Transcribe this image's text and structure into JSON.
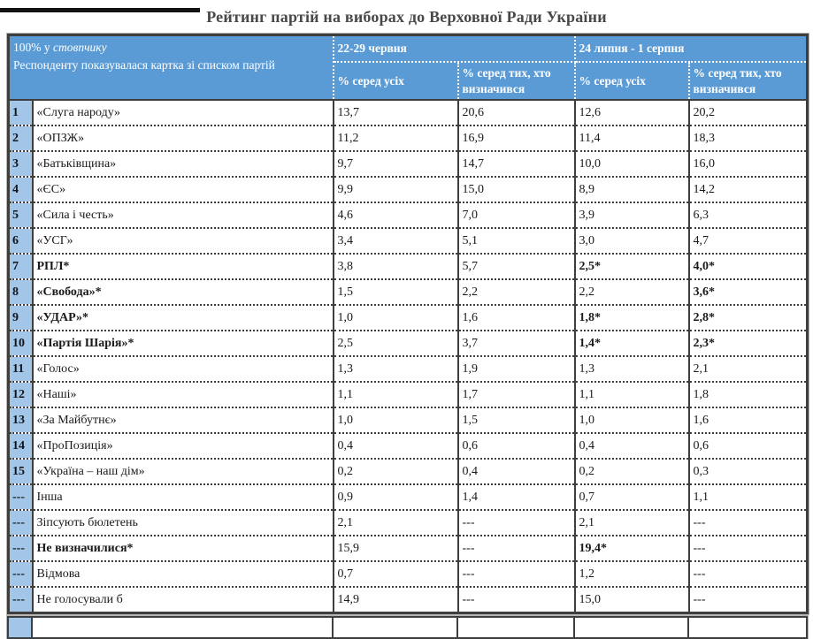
{
  "title": "Рейтинг партій на виборах до Верховної Ради України",
  "table": {
    "corner": {
      "line1_normal": "100% у ",
      "line1_italic": "стовпчику",
      "line2": "Респонденту показувалася картка зі списком партій"
    },
    "periods": [
      {
        "label": "22-29 червня"
      },
      {
        "label": "24 липня - 1 серпня"
      }
    ],
    "subheaders": [
      "% серед усіх",
      "% серед тих, хто визначився",
      "% серед усіх",
      "% серед тих, хто визначився"
    ],
    "rows": [
      {
        "num": "1",
        "party": "«Слуга народу»",
        "party_bold": false,
        "values": [
          "13,7",
          "20,6",
          "12,6",
          "20,2"
        ],
        "bold_values": [
          false,
          false,
          false,
          false
        ]
      },
      {
        "num": "2",
        "party": "«ОПЗЖ»",
        "party_bold": false,
        "values": [
          "11,2",
          "16,9",
          "11,4",
          "18,3"
        ],
        "bold_values": [
          false,
          false,
          false,
          false
        ]
      },
      {
        "num": "3",
        "party": "«Батьківщина»",
        "party_bold": false,
        "values": [
          "9,7",
          "14,7",
          "10,0",
          "16,0"
        ],
        "bold_values": [
          false,
          false,
          false,
          false
        ]
      },
      {
        "num": "4",
        "party": "«ЄС»",
        "party_bold": false,
        "values": [
          "9,9",
          "15,0",
          "8,9",
          "14,2"
        ],
        "bold_values": [
          false,
          false,
          false,
          false
        ]
      },
      {
        "num": "5",
        "party": "«Сила і честь»",
        "party_bold": false,
        "values": [
          "4,6",
          "7,0",
          "3,9",
          "6,3"
        ],
        "bold_values": [
          false,
          false,
          false,
          false
        ]
      },
      {
        "num": "6",
        "party": "«УСГ»",
        "party_bold": false,
        "values": [
          "3,4",
          "5,1",
          "3,0",
          "4,7"
        ],
        "bold_values": [
          false,
          false,
          false,
          false
        ]
      },
      {
        "num": "7",
        "party": "РПЛ*",
        "party_bold": true,
        "values": [
          "3,8",
          "5,7",
          "2,5*",
          "4,0*"
        ],
        "bold_values": [
          false,
          false,
          true,
          true
        ]
      },
      {
        "num": "8",
        "party": "«Свобода»*",
        "party_bold": true,
        "values": [
          "1,5",
          "2,2",
          "2,2",
          "3,6*"
        ],
        "bold_values": [
          false,
          false,
          false,
          true
        ]
      },
      {
        "num": "9",
        "party": "«УДАР»*",
        "party_bold": true,
        "values": [
          "1,0",
          "1,6",
          "1,8*",
          "2,8*"
        ],
        "bold_values": [
          false,
          false,
          true,
          true
        ]
      },
      {
        "num": "10",
        "party": "«Партія Шарія»*",
        "party_bold": true,
        "values": [
          "2,5",
          "3,7",
          "1,4*",
          "2,3*"
        ],
        "bold_values": [
          false,
          false,
          true,
          true
        ]
      },
      {
        "num": "11",
        "party": "«Голос»",
        "party_bold": false,
        "values": [
          "1,3",
          "1,9",
          "1,3",
          "2,1"
        ],
        "bold_values": [
          false,
          false,
          false,
          false
        ]
      },
      {
        "num": "12",
        "party": "«Наші»",
        "party_bold": false,
        "values": [
          "1,1",
          "1,7",
          "1,1",
          "1,8"
        ],
        "bold_values": [
          false,
          false,
          false,
          false
        ]
      },
      {
        "num": "13",
        "party": "«За Майбутнє»",
        "party_bold": false,
        "values": [
          "1,0",
          "1,5",
          "1,0",
          "1,6"
        ],
        "bold_values": [
          false,
          false,
          false,
          false
        ]
      },
      {
        "num": "14",
        "party": "«ПроПозиція»",
        "party_bold": false,
        "values": [
          "0,4",
          "0,6",
          "0,4",
          "0,6"
        ],
        "bold_values": [
          false,
          false,
          false,
          false
        ]
      },
      {
        "num": "15",
        "party": "«Україна – наш дім»",
        "party_bold": false,
        "values": [
          "0,2",
          "0,4",
          "0,2",
          "0,3"
        ],
        "bold_values": [
          false,
          false,
          false,
          false
        ]
      },
      {
        "num": "---",
        "party": "Інша",
        "party_bold": false,
        "values": [
          "0,9",
          "1,4",
          "0,7",
          "1,1"
        ],
        "bold_values": [
          false,
          false,
          false,
          false
        ]
      },
      {
        "num": "---",
        "party": "Зіпсують бюлетень",
        "party_bold": false,
        "values": [
          "2,1",
          "---",
          "2,1",
          "---"
        ],
        "bold_values": [
          false,
          false,
          false,
          false
        ]
      },
      {
        "num": "---",
        "party": "Не визначилися*",
        "party_bold": true,
        "values": [
          "15,9",
          "---",
          "19,4*",
          "---"
        ],
        "bold_values": [
          false,
          false,
          true,
          false
        ]
      },
      {
        "num": "---",
        "party": "Відмова",
        "party_bold": false,
        "values": [
          "0,7",
          "---",
          "1,2",
          "---"
        ],
        "bold_values": [
          false,
          false,
          false,
          false
        ]
      },
      {
        "num": "---",
        "party": "Не голосували б",
        "party_bold": false,
        "values": [
          "14,9",
          "---",
          "15,0",
          "---"
        ],
        "bold_values": [
          false,
          false,
          false,
          false
        ]
      }
    ]
  },
  "colors": {
    "header_blue": "#5B9BD5",
    "row_number_blue": "#A3C6E8",
    "border_dark": "#3E3E3E",
    "title_gray": "#484848"
  }
}
